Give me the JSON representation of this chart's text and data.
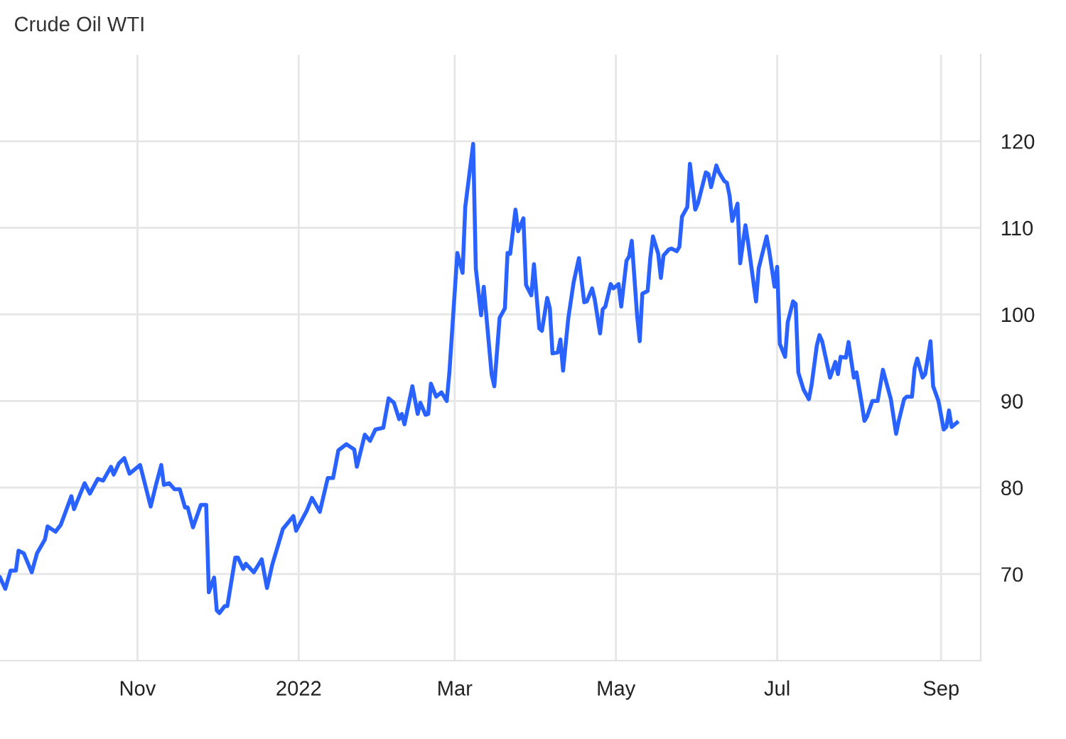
{
  "chart_data": {
    "type": "line",
    "title": "Crude Oil WTI",
    "x": [
      "2021-09-10",
      "2021-09-12",
      "2021-09-14",
      "2021-09-16",
      "2021-09-17",
      "2021-09-19",
      "2021-09-22",
      "2021-09-24",
      "2021-09-27",
      "2021-09-28",
      "2021-10-01",
      "2021-10-03",
      "2021-10-07",
      "2021-10-08",
      "2021-10-12",
      "2021-10-14",
      "2021-10-17",
      "2021-10-19",
      "2021-10-22",
      "2021-10-23",
      "2021-10-25",
      "2021-10-27",
      "2021-10-29",
      "2021-11-02",
      "2021-11-06",
      "2021-11-08",
      "2021-11-10",
      "2021-11-11",
      "2021-11-13",
      "2021-11-15",
      "2021-11-17",
      "2021-11-19",
      "2021-11-20",
      "2021-11-22",
      "2021-11-25",
      "2021-11-27",
      "2021-11-28",
      "2021-11-30",
      "2021-12-01",
      "2021-12-02",
      "2021-12-04",
      "2021-12-05",
      "2021-12-08",
      "2021-12-09",
      "2021-12-11",
      "2021-12-12",
      "2021-12-15",
      "2021-12-18",
      "2021-12-20",
      "2021-12-22",
      "2021-12-26",
      "2021-12-30",
      "2021-12-31",
      "2022-01-04",
      "2022-01-06",
      "2022-01-09",
      "2022-01-12",
      "2022-01-14",
      "2022-01-16",
      "2022-01-19",
      "2022-01-22",
      "2022-01-23",
      "2022-01-26",
      "2022-01-28",
      "2022-01-30",
      "2022-02-02",
      "2022-02-04",
      "2022-02-06",
      "2022-02-08",
      "2022-02-09",
      "2022-02-10",
      "2022-02-13",
      "2022-02-15",
      "2022-02-16",
      "2022-02-18",
      "2022-02-19",
      "2022-02-20",
      "2022-02-22",
      "2022-02-24",
      "2022-02-26",
      "2022-02-27",
      "2022-03-02",
      "2022-03-04",
      "2022-03-05",
      "2022-03-08",
      "2022-03-09",
      "2022-03-11",
      "2022-03-12",
      "2022-03-15",
      "2022-03-16",
      "2022-03-18",
      "2022-03-20",
      "2022-03-21",
      "2022-03-22",
      "2022-03-24",
      "2022-03-25",
      "2022-03-27",
      "2022-03-28",
      "2022-03-30",
      "2022-03-31",
      "2022-04-02",
      "2022-04-03",
      "2022-04-05",
      "2022-04-06",
      "2022-04-07",
      "2022-04-09",
      "2022-04-10",
      "2022-04-11",
      "2022-04-13",
      "2022-04-15",
      "2022-04-17",
      "2022-04-19",
      "2022-04-20",
      "2022-04-22",
      "2022-04-23",
      "2022-04-25",
      "2022-04-26",
      "2022-04-27",
      "2022-04-29",
      "2022-04-30",
      "2022-05-02",
      "2022-05-03",
      "2022-05-05",
      "2022-05-06",
      "2022-05-07",
      "2022-05-09",
      "2022-05-10",
      "2022-05-11",
      "2022-05-13",
      "2022-05-14",
      "2022-05-15",
      "2022-05-17",
      "2022-05-18",
      "2022-05-19",
      "2022-05-21",
      "2022-05-22",
      "2022-05-24",
      "2022-05-25",
      "2022-05-26",
      "2022-05-28",
      "2022-05-29",
      "2022-05-31",
      "2022-06-01",
      "2022-06-04",
      "2022-06-05",
      "2022-06-06",
      "2022-06-08",
      "2022-06-09",
      "2022-06-11",
      "2022-06-12",
      "2022-06-13",
      "2022-06-14",
      "2022-06-16",
      "2022-06-17",
      "2022-06-19",
      "2022-06-20",
      "2022-06-23",
      "2022-06-24",
      "2022-06-27",
      "2022-06-28",
      "2022-06-30",
      "2022-07-01",
      "2022-07-02",
      "2022-07-04",
      "2022-07-05",
      "2022-07-07",
      "2022-07-08",
      "2022-07-09",
      "2022-07-11",
      "2022-07-13",
      "2022-07-14",
      "2022-07-16",
      "2022-07-17",
      "2022-07-18",
      "2022-07-20",
      "2022-07-21",
      "2022-07-23",
      "2022-07-24",
      "2022-07-25",
      "2022-07-27",
      "2022-07-28",
      "2022-07-30",
      "2022-07-31",
      "2022-08-02",
      "2022-08-03",
      "2022-08-04",
      "2022-08-06",
      "2022-08-08",
      "2022-08-10",
      "2022-08-13",
      "2022-08-15",
      "2022-08-16",
      "2022-08-18",
      "2022-08-19",
      "2022-08-21",
      "2022-08-22",
      "2022-08-23",
      "2022-08-25",
      "2022-08-26",
      "2022-08-28",
      "2022-08-29",
      "2022-08-31",
      "2022-09-02",
      "2022-09-03",
      "2022-09-04",
      "2022-09-05",
      "2022-09-07"
    ],
    "series": [
      {
        "color": "#2962ff",
        "values": [
          69.6,
          68.3,
          70.4,
          70.4,
          72.7,
          72.4,
          70.2,
          72.4,
          74.0,
          75.5,
          74.9,
          75.7,
          79.0,
          77.5,
          80.5,
          79.3,
          81.0,
          80.8,
          82.4,
          81.5,
          82.8,
          83.4,
          81.6,
          82.6,
          77.8,
          80.3,
          82.6,
          80.3,
          80.5,
          79.8,
          79.8,
          77.7,
          77.7,
          75.4,
          78.0,
          78.0,
          67.9,
          69.6,
          65.8,
          65.5,
          66.3,
          66.3,
          71.9,
          71.9,
          70.6,
          71.2,
          70.2,
          71.7,
          68.4,
          71.1,
          75.2,
          76.7,
          75.0,
          77.3,
          78.8,
          77.2,
          81.1,
          81.1,
          84.3,
          85.0,
          84.4,
          82.4,
          86.1,
          85.4,
          86.7,
          86.9,
          90.3,
          89.8,
          87.9,
          88.5,
          87.3,
          91.7,
          88.5,
          89.8,
          88.4,
          88.5,
          92.0,
          90.5,
          91.0,
          90.0,
          93.3,
          107.1,
          104.8,
          112.4,
          119.7,
          105.3,
          99.9,
          103.2,
          93.0,
          91.7,
          99.6,
          100.7,
          107.1,
          107.0,
          112.1,
          109.6,
          111.1,
          103.4,
          102.2,
          105.8,
          98.4,
          98.1,
          101.9,
          100.7,
          95.5,
          95.6,
          97.1,
          93.5,
          99.6,
          103.7,
          106.5,
          101.4,
          101.5,
          103.0,
          101.7,
          97.8,
          100.6,
          100.9,
          103.5,
          103.0,
          103.5,
          100.9,
          106.2,
          106.7,
          108.5,
          99.9,
          96.9,
          102.4,
          102.7,
          106.5,
          109.0,
          107.0,
          104.2,
          106.8,
          107.5,
          107.6,
          107.3,
          107.8,
          111.3,
          112.4,
          117.4,
          112.1,
          112.8,
          116.4,
          116.2,
          114.7,
          117.2,
          116.4,
          115.4,
          115.2,
          113.7,
          110.8,
          112.8,
          105.9,
          110.3,
          108.3,
          101.5,
          105.3,
          109.0,
          107.3,
          103.2,
          105.5,
          96.6,
          95.1,
          99.1,
          101.5,
          101.2,
          93.3,
          91.3,
          90.2,
          91.8,
          96.4,
          97.6,
          96.9,
          94.1,
          92.7,
          94.5,
          93.1,
          95.1,
          95.0,
          96.8,
          92.7,
          93.3,
          89.7,
          87.7,
          88.2,
          90.0,
          90.0,
          93.6,
          90.2,
          86.2,
          87.7,
          90.2,
          90.5,
          90.5,
          93.8,
          94.9,
          92.7,
          93.1,
          96.9,
          91.7,
          90.0,
          86.7,
          87.0,
          88.9,
          87.0,
          87.5
        ]
      }
    ],
    "xlim": [
      "2021-09-10",
      "2022-09-16"
    ],
    "xticks": [
      {
        "value": "2021-11-01",
        "label": "Nov"
      },
      {
        "value": "2022-01-01",
        "label": "2022"
      },
      {
        "value": "2022-03-01",
        "label": "Mar"
      },
      {
        "value": "2022-05-01",
        "label": "May"
      },
      {
        "value": "2022-07-01",
        "label": "Jul"
      },
      {
        "value": "2022-09-01",
        "label": "Sep"
      }
    ],
    "ylim": [
      60,
      130
    ],
    "yticks": [
      70,
      80,
      90,
      100,
      110,
      120
    ],
    "grid": true,
    "marker": "none",
    "line_style": "solid"
  }
}
